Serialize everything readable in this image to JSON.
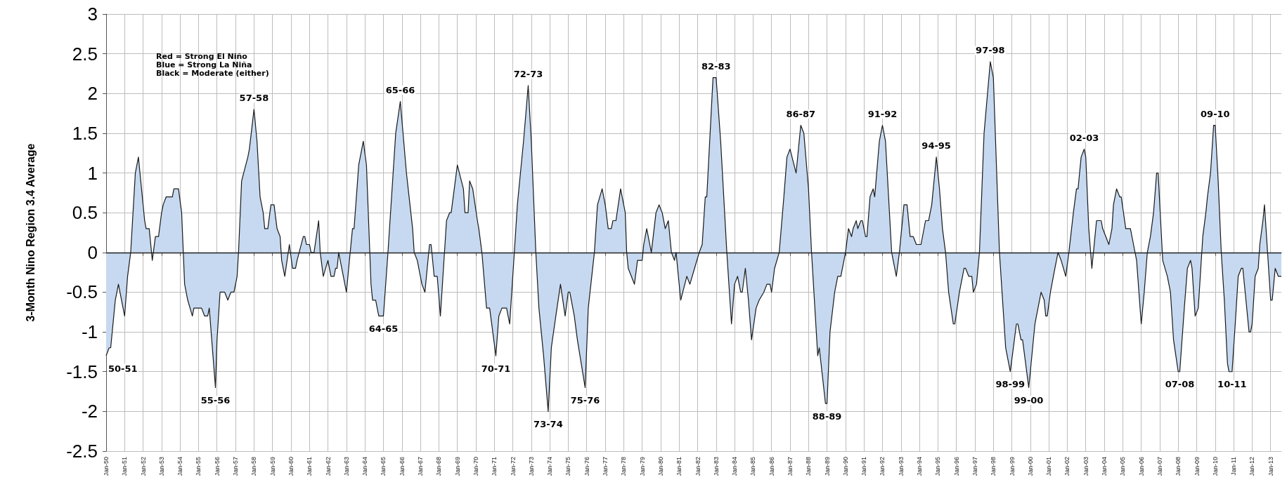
{
  "chart_data": {
    "type": "area",
    "ylabel": "3-Month Nino Region 3.4 Average",
    "x": [
      "1950-01",
      "1950-03",
      "1950-04",
      "1950-07",
      "1950-09",
      "1950-11",
      "1951-01",
      "1951-03",
      "1951-05",
      "1951-08",
      "1951-10",
      "1952-02",
      "1952-03",
      "1952-05",
      "1952-07",
      "1952-09",
      "1952-11",
      "1953-01",
      "1953-02",
      "1953-04",
      "1953-08",
      "1953-09",
      "1953-12",
      "1954-02",
      "1954-04",
      "1954-06",
      "1954-09",
      "1954-10",
      "1955-03",
      "1955-05",
      "1955-07",
      "1955-08",
      "1955-12",
      "1956-01",
      "1956-03",
      "1956-06",
      "1956-08",
      "1956-10",
      "1956-12",
      "1957-02",
      "1957-03",
      "1957-05",
      "1957-09",
      "1957-10",
      "1958-01",
      "1958-03",
      "1958-05",
      "1958-07",
      "1958-08",
      "1958-10",
      "1958-12",
      "1959-02",
      "1959-04",
      "1959-06",
      "1959-07",
      "1959-09",
      "1959-12",
      "1960-02",
      "1960-04",
      "1960-05",
      "1960-09",
      "1960-10",
      "1960-11",
      "1961-01",
      "1961-02",
      "1961-04",
      "1961-07",
      "1961-08",
      "1961-10",
      "1962-01",
      "1962-03",
      "1962-05",
      "1962-06",
      "1962-07",
      "1962-08",
      "1962-10",
      "1963-01",
      "1963-03",
      "1963-05",
      "1963-06",
      "1963-09",
      "1963-12",
      "1964-02",
      "1964-05",
      "1964-06",
      "1964-08",
      "1964-10",
      "1965-01",
      "1965-04",
      "1965-09",
      "1965-12",
      "1966-04",
      "1966-08",
      "1966-09",
      "1966-11",
      "1967-02",
      "1967-04",
      "1967-07",
      "1967-08",
      "1967-10",
      "1967-12",
      "1968-02",
      "1968-06",
      "1968-08",
      "1968-09",
      "1969-01",
      "1969-05",
      "1969-06",
      "1969-08",
      "1969-09",
      "1969-11",
      "1970-02",
      "1970-03",
      "1970-05",
      "1970-08",
      "1970-10",
      "1971-02",
      "1971-04",
      "1971-06",
      "1971-09",
      "1971-11",
      "1972-02",
      "1972-04",
      "1972-08",
      "1972-11",
      "1973-01",
      "1973-04",
      "1973-06",
      "1973-09",
      "1973-12",
      "1974-02",
      "1974-05",
      "1974-08",
      "1974-11",
      "1975-01",
      "1975-02",
      "1975-05",
      "1975-07",
      "1975-12",
      "1976-02",
      "1976-06",
      "1976-08",
      "1976-11",
      "1977-01",
      "1977-03",
      "1977-05",
      "1977-06",
      "1977-08",
      "1977-11",
      "1978-02",
      "1978-03",
      "1978-04",
      "1978-06",
      "1978-08",
      "1978-10",
      "1979-01",
      "1979-02",
      "1979-04",
      "1979-07",
      "1979-10",
      "1979-12",
      "1980-02",
      "1980-04",
      "1980-06",
      "1980-08",
      "1980-10",
      "1980-11",
      "1981-02",
      "1981-06",
      "1981-08",
      "1981-11",
      "1982-02",
      "1982-04",
      "1982-06",
      "1982-07",
      "1982-11",
      "1983-01",
      "1983-04",
      "1983-08",
      "1983-11",
      "1984-01",
      "1984-03",
      "1984-05",
      "1984-06",
      "1984-08",
      "1984-10",
      "1984-12",
      "1985-03",
      "1985-05",
      "1985-08",
      "1985-10",
      "1985-12",
      "1986-01",
      "1986-03",
      "1986-06",
      "1986-09",
      "1986-11",
      "1987-01",
      "1987-05",
      "1987-08",
      "1987-10",
      "1988-01",
      "1988-03",
      "1988-07",
      "1988-08",
      "1988-12",
      "1989-01",
      "1989-03",
      "1989-06",
      "1989-08",
      "1989-10",
      "1990-01",
      "1990-03",
      "1990-05",
      "1990-06",
      "1990-08",
      "1990-09",
      "1990-11",
      "1990-12",
      "1991-02",
      "1991-03",
      "1991-05",
      "1991-07",
      "1991-08",
      "1991-11",
      "1992-01",
      "1992-03",
      "1992-05",
      "1992-07",
      "1992-10",
      "1992-12",
      "1993-03",
      "1993-05",
      "1993-07",
      "1993-09",
      "1993-11",
      "1994-02",
      "1994-05",
      "1994-07",
      "1994-09",
      "1994-12",
      "1995-02",
      "1995-04",
      "1995-06",
      "1995-08",
      "1995-11",
      "1995-12",
      "1996-03",
      "1996-06",
      "1996-07",
      "1996-09",
      "1996-11",
      "1996-12",
      "1997-02",
      "1997-04",
      "1997-07",
      "1997-11",
      "1998-01",
      "1998-05",
      "1998-09",
      "1998-12",
      "1999-04",
      "1999-05",
      "1999-07",
      "1999-08",
      "1999-12",
      "2000-01",
      "2000-04",
      "2000-08",
      "2000-10",
      "2000-11",
      "2000-12",
      "2001-02",
      "2001-05",
      "2001-07",
      "2001-09",
      "2001-12",
      "2002-02",
      "2002-05",
      "2002-07",
      "2002-08",
      "2002-10",
      "2002-12",
      "2003-01",
      "2003-03",
      "2003-05",
      "2003-06",
      "2003-08",
      "2003-11",
      "2003-12",
      "2004-02",
      "2004-04",
      "2004-06",
      "2004-07",
      "2004-09",
      "2004-11",
      "2004-12",
      "2005-03",
      "2005-06",
      "2005-08",
      "2005-10",
      "2006-01",
      "2006-03",
      "2006-05",
      "2006-07",
      "2006-09",
      "2006-11",
      "2006-12",
      "2007-03",
      "2007-06",
      "2007-08",
      "2007-10",
      "2008-01",
      "2008-02",
      "2008-05",
      "2008-07",
      "2008-09",
      "2008-10",
      "2008-12",
      "2009-02",
      "2009-05",
      "2009-07",
      "2009-08",
      "2009-10",
      "2009-12",
      "2010-01",
      "2010-03",
      "2010-05",
      "2010-07",
      "2010-09",
      "2010-10",
      "2010-12",
      "2011-02",
      "2011-04",
      "2011-06",
      "2011-07",
      "2011-09",
      "2011-11",
      "2011-12",
      "2012-01",
      "2012-03",
      "2012-05",
      "2012-06",
      "2012-08",
      "2012-09",
      "2012-11",
      "2013-01",
      "2013-02",
      "2013-04",
      "2013-06",
      "2013-08"
    ],
    "series": [
      {
        "color": "#c6d9f0",
        "values": [
          -1.3,
          -1.2,
          -1.2,
          -0.6,
          -0.4,
          -0.6,
          -0.8,
          -0.3,
          0.0,
          1.0,
          1.2,
          0.4,
          0.3,
          0.3,
          -0.1,
          0.2,
          0.2,
          0.5,
          0.6,
          0.7,
          0.7,
          0.8,
          0.8,
          0.5,
          -0.4,
          -0.6,
          -0.8,
          -0.7,
          -0.7,
          -0.8,
          -0.8,
          -0.7,
          -1.7,
          -1.1,
          -0.5,
          -0.5,
          -0.6,
          -0.5,
          -0.5,
          -0.3,
          0.0,
          0.9,
          1.2,
          1.3,
          1.8,
          1.4,
          0.7,
          0.5,
          0.3,
          0.3,
          0.6,
          0.6,
          0.3,
          0.2,
          -0.1,
          -0.3,
          0.1,
          -0.2,
          -0.2,
          -0.1,
          0.2,
          0.2,
          0.1,
          0.1,
          0.0,
          0.0,
          0.4,
          0.0,
          -0.3,
          -0.1,
          -0.3,
          -0.3,
          -0.2,
          -0.2,
          0.0,
          -0.2,
          -0.5,
          -0.1,
          0.3,
          0.3,
          1.1,
          1.4,
          1.1,
          -0.4,
          -0.6,
          -0.6,
          -0.8,
          -0.8,
          0.0,
          1.5,
          1.9,
          1.0,
          0.3,
          0.0,
          -0.1,
          -0.4,
          -0.5,
          0.1,
          0.1,
          -0.3,
          -0.3,
          -0.8,
          0.4,
          0.5,
          0.5,
          1.1,
          0.8,
          0.5,
          0.5,
          0.9,
          0.8,
          0.4,
          0.3,
          0.0,
          -0.7,
          -0.7,
          -1.3,
          -0.8,
          -0.7,
          -0.7,
          -0.9,
          0.0,
          0.6,
          1.4,
          2.1,
          1.4,
          0.0,
          -0.7,
          -1.3,
          -2.0,
          -1.2,
          -0.8,
          -0.4,
          -0.8,
          -0.5,
          -0.5,
          -0.8,
          -1.1,
          -1.7,
          -0.7,
          0.0,
          0.6,
          0.8,
          0.6,
          0.3,
          0.3,
          0.4,
          0.4,
          0.8,
          0.5,
          0.0,
          -0.2,
          -0.3,
          -0.4,
          -0.1,
          -0.1,
          0.1,
          0.3,
          0.0,
          0.5,
          0.6,
          0.5,
          0.3,
          0.4,
          0.0,
          -0.1,
          0.0,
          -0.6,
          -0.3,
          -0.4,
          -0.2,
          0.0,
          0.1,
          0.7,
          0.7,
          2.2,
          2.2,
          1.4,
          0.0,
          -0.9,
          -0.4,
          -0.3,
          -0.5,
          -0.5,
          -0.2,
          -0.6,
          -1.1,
          -0.7,
          -0.6,
          -0.5,
          -0.4,
          -0.4,
          -0.5,
          -0.2,
          0.0,
          0.7,
          1.2,
          1.3,
          1.0,
          1.6,
          1.5,
          0.8,
          0.0,
          -1.3,
          -1.2,
          -1.9,
          -1.9,
          -1.0,
          -0.5,
          -0.3,
          -0.3,
          0.0,
          0.3,
          0.2,
          0.3,
          0.4,
          0.3,
          0.4,
          0.4,
          0.2,
          0.2,
          0.7,
          0.8,
          0.7,
          1.4,
          1.6,
          1.4,
          0.7,
          0.0,
          -0.3,
          0.0,
          0.6,
          0.6,
          0.2,
          0.2,
          0.1,
          0.1,
          0.4,
          0.4,
          0.6,
          1.2,
          0.8,
          0.3,
          0.0,
          -0.5,
          -0.9,
          -0.9,
          -0.5,
          -0.2,
          -0.2,
          -0.3,
          -0.3,
          -0.5,
          -0.4,
          0.0,
          1.5,
          2.4,
          2.2,
          0.0,
          -1.2,
          -1.5,
          -0.9,
          -0.9,
          -1.1,
          -1.1,
          -1.7,
          -1.5,
          -0.9,
          -0.5,
          -0.6,
          -0.8,
          -0.8,
          -0.5,
          -0.2,
          0.0,
          -0.1,
          -0.3,
          0.0,
          0.5,
          0.8,
          0.8,
          1.2,
          1.3,
          1.2,
          0.3,
          -0.2,
          0.0,
          0.4,
          0.4,
          0.3,
          0.2,
          0.1,
          0.3,
          0.6,
          0.8,
          0.7,
          0.7,
          0.3,
          0.3,
          0.1,
          -0.1,
          -0.9,
          -0.5,
          0.0,
          0.2,
          0.5,
          1.0,
          1.0,
          -0.1,
          -0.3,
          -0.5,
          -1.1,
          -1.5,
          -1.5,
          -0.7,
          -0.2,
          -0.1,
          -0.2,
          -0.8,
          -0.7,
          0.2,
          0.5,
          0.7,
          1.0,
          1.6,
          1.6,
          0.9,
          0.0,
          -0.6,
          -1.4,
          -1.5,
          -1.5,
          -0.9,
          -0.3,
          -0.2,
          -0.2,
          -0.6,
          -1.0,
          -1.0,
          -0.9,
          -0.3,
          -0.2,
          0.1,
          0.4,
          0.6,
          0.0,
          -0.6,
          -0.6,
          -0.2,
          -0.3,
          -0.3
        ]
      }
    ],
    "xlim": [
      "1950-01",
      "2013-08"
    ],
    "xticks": [
      {
        "value": "1950-01",
        "label": "Jan-50"
      },
      {
        "value": "1951-01",
        "label": "Jan-51"
      },
      {
        "value": "1952-01",
        "label": "Jan-52"
      },
      {
        "value": "1953-01",
        "label": "Jan-53"
      },
      {
        "value": "1954-01",
        "label": "Jan-54"
      },
      {
        "value": "1955-01",
        "label": "Jan-55"
      },
      {
        "value": "1956-01",
        "label": "Jan-56"
      },
      {
        "value": "1957-01",
        "label": "Jan-57"
      },
      {
        "value": "1958-01",
        "label": "Jan-58"
      },
      {
        "value": "1959-01",
        "label": "Jan-59"
      },
      {
        "value": "1960-01",
        "label": "Jan-60"
      },
      {
        "value": "1961-01",
        "label": "Jan-61"
      },
      {
        "value": "1962-01",
        "label": "Jan-62"
      },
      {
        "value": "1963-01",
        "label": "Jan-63"
      },
      {
        "value": "1964-01",
        "label": "Jan-64"
      },
      {
        "value": "1965-01",
        "label": "Jan-65"
      },
      {
        "value": "1966-01",
        "label": "Jan-66"
      },
      {
        "value": "1967-01",
        "label": "Jan-67"
      },
      {
        "value": "1968-01",
        "label": "Jan-68"
      },
      {
        "value": "1969-01",
        "label": "Jan-69"
      },
      {
        "value": "1970-01",
        "label": "Jan-70"
      },
      {
        "value": "1971-01",
        "label": "Jan-71"
      },
      {
        "value": "1972-01",
        "label": "Jan-72"
      },
      {
        "value": "1973-01",
        "label": "Jan-73"
      },
      {
        "value": "1974-01",
        "label": "Jan-74"
      },
      {
        "value": "1975-01",
        "label": "Jan-75"
      },
      {
        "value": "1976-01",
        "label": "Jan-76"
      },
      {
        "value": "1977-01",
        "label": "Jan-77"
      },
      {
        "value": "1978-01",
        "label": "Jan-78"
      },
      {
        "value": "1979-01",
        "label": "Jan-79"
      },
      {
        "value": "1980-01",
        "label": "Jan-80"
      },
      {
        "value": "1981-01",
        "label": "Jan-81"
      },
      {
        "value": "1982-01",
        "label": "Jan-82"
      },
      {
        "value": "1983-01",
        "label": "Jan-83"
      },
      {
        "value": "1984-01",
        "label": "Jan-84"
      },
      {
        "value": "1985-01",
        "label": "Jan-85"
      },
      {
        "value": "1986-01",
        "label": "Jan-86"
      },
      {
        "value": "1987-01",
        "label": "Jan-87"
      },
      {
        "value": "1988-01",
        "label": "Jan-88"
      },
      {
        "value": "1989-01",
        "label": "Jan-89"
      },
      {
        "value": "1990-01",
        "label": "Jan-90"
      },
      {
        "value": "1991-01",
        "label": "Jan-91"
      },
      {
        "value": "1992-01",
        "label": "Jan-92"
      },
      {
        "value": "1993-01",
        "label": "Jan-93"
      },
      {
        "value": "1994-01",
        "label": "Jan-94"
      },
      {
        "value": "1995-01",
        "label": "Jan-95"
      },
      {
        "value": "1996-01",
        "label": "Jan-96"
      },
      {
        "value": "1997-01",
        "label": "Jan-97"
      },
      {
        "value": "1998-01",
        "label": "Jan-98"
      },
      {
        "value": "1999-01",
        "label": "Jan-99"
      },
      {
        "value": "2000-01",
        "label": "Jan-00"
      },
      {
        "value": "2001-01",
        "label": "Jan-01"
      },
      {
        "value": "2002-01",
        "label": "Jan-02"
      },
      {
        "value": "2003-01",
        "label": "Jan-03"
      },
      {
        "value": "2004-01",
        "label": "Jan-04"
      },
      {
        "value": "2005-01",
        "label": "Jan-05"
      },
      {
        "value": "2006-01",
        "label": "Jan-06"
      },
      {
        "value": "2007-01",
        "label": "Jan-07"
      },
      {
        "value": "2008-01",
        "label": "Jan-08"
      },
      {
        "value": "2009-01",
        "label": "Jan-09"
      },
      {
        "value": "2010-01",
        "label": "Jan-10"
      },
      {
        "value": "2011-01",
        "label": "Jan-11"
      },
      {
        "value": "2012-01",
        "label": "Jan-12"
      },
      {
        "value": "2013-01",
        "label": "Jan-13"
      }
    ],
    "ylim": [
      -2.5,
      3
    ],
    "yticks": [
      -2.5,
      -2,
      -1.5,
      -1,
      -0.5,
      0,
      0.5,
      1,
      1.5,
      2,
      2.5,
      3
    ],
    "grid": true,
    "marker": "none",
    "annotations": [
      "Red = Strong El Niño",
      "Blue = Strong La Niña",
      "Black = Moderate (either)",
      {
        "text": "50-51",
        "x": "1950-01",
        "y": -1.3
      },
      {
        "text": "55-56",
        "x": "1955-12",
        "y": -1.7
      },
      {
        "text": "57-58",
        "x": "1958-01",
        "y": 1.8
      },
      {
        "text": "64-65",
        "x": "1965-01",
        "y": -0.8
      },
      {
        "text": "65-66",
        "x": "1965-12",
        "y": 1.9
      },
      {
        "text": "70-71",
        "x": "1971-02",
        "y": -1.3
      },
      {
        "text": "72-73",
        "x": "1972-11",
        "y": 2.1
      },
      {
        "text": "73-74",
        "x": "1973-12",
        "y": -2.0
      },
      {
        "text": "75-76",
        "x": "1975-12",
        "y": -1.7
      },
      {
        "text": "82-83",
        "x": "1983-01",
        "y": 2.2
      },
      {
        "text": "86-87",
        "x": "1987-08",
        "y": 1.6
      },
      {
        "text": "88-89",
        "x": "1989-01",
        "y": -1.9
      },
      {
        "text": "91-92",
        "x": "1992-01",
        "y": 1.6
      },
      {
        "text": "94-95",
        "x": "1994-12",
        "y": 1.2
      },
      {
        "text": "97-98",
        "x": "1997-11",
        "y": 2.4
      },
      {
        "text": "98-99",
        "x": "1998-12",
        "y": -1.5
      },
      {
        "text": "99-00",
        "x": "1999-12",
        "y": -1.7
      },
      {
        "text": "02-03",
        "x": "2002-12",
        "y": 1.3
      },
      {
        "text": "07-08",
        "x": "2008-02",
        "y": -1.5
      },
      {
        "text": "09-10",
        "x": "2010-01",
        "y": 1.6
      },
      {
        "text": "10-11",
        "x": "2010-12",
        "y": -1.5
      }
    ]
  }
}
